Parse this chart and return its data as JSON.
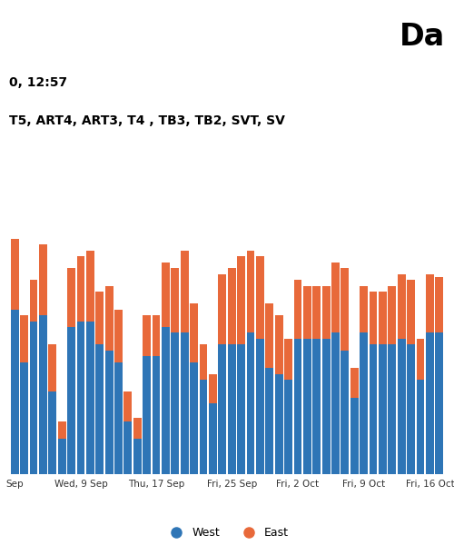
{
  "title": "Da",
  "subtitle_line1": "0, 12:57",
  "subtitle_line2": "T5, ART4, ART3, T4 , TB3, TB2, SVT, SV",
  "west_color": "#2E75B6",
  "east_color": "#E8693A",
  "background_color": "#ffffff",
  "grid_color": "#cccccc",
  "x_tick_labels": [
    "Sep",
    "Wed, 9 Sep",
    "Thu, 17 Sep",
    "Fri, 25 Sep",
    "Fri, 2 Oct",
    "Fri, 9 Oct",
    "Fri, 16 Oct"
  ],
  "x_tick_positions": [
    0,
    7,
    15,
    23,
    30,
    37,
    44
  ],
  "west_values": [
    2800,
    1900,
    2600,
    2700,
    1400,
    600,
    2500,
    2600,
    2600,
    2200,
    2100,
    1900,
    900,
    600,
    2000,
    2000,
    2500,
    2400,
    2400,
    1900,
    1600,
    1200,
    2200,
    2200,
    2200,
    2400,
    2300,
    1800,
    1700,
    1600,
    2300,
    2300,
    2300,
    2300,
    2400,
    2100,
    1300,
    2400,
    2200,
    2200,
    2200,
    2300,
    2200,
    1600,
    2400,
    2400
  ],
  "east_values": [
    1200,
    800,
    700,
    1200,
    800,
    300,
    1000,
    1100,
    1200,
    900,
    1100,
    900,
    500,
    350,
    700,
    700,
    1100,
    1100,
    1400,
    1000,
    600,
    500,
    1200,
    1300,
    1500,
    1400,
    1400,
    1100,
    1000,
    700,
    1000,
    900,
    900,
    900,
    1200,
    1400,
    500,
    800,
    900,
    900,
    1000,
    1100,
    1100,
    700,
    1000,
    950
  ],
  "ylim": [
    0,
    5000
  ],
  "legend_west": "West",
  "legend_east": "East"
}
